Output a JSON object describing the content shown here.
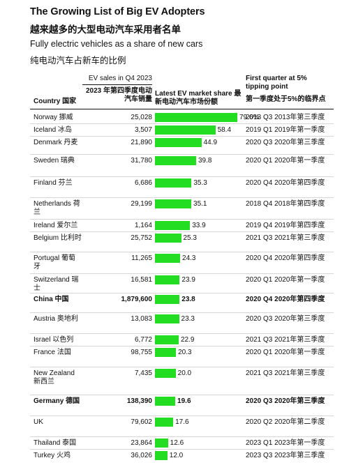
{
  "header": {
    "title": "The Growing List of Big EV Adopters",
    "title_cn": "越来越多的大型电动汽车采用者名单",
    "subtitle": "Fully electric vehicles as a share of new cars",
    "subtitle_cn": "纯电动汽车占新车的比例"
  },
  "columns": {
    "country": "Country 国家",
    "sales_line1": "EV sales in Q4 2023",
    "sales_line2": "2023 年第四季度电动汽车销量",
    "share": "Latest EV market share 最新电动汽车市场份额",
    "tipping_line1": "First quarter at 5% tipping point",
    "tipping_line2": "第一季度处于5%的临界点"
  },
  "chart_data": {
    "type": "table",
    "rows": [
      {
        "country": "Norway 挪威",
        "sales": "25,028",
        "share": 79.6,
        "share_label": "79.6%",
        "tipping": "2013 Q3 2013年第三季度",
        "bold": false
      },
      {
        "country": "Iceland 冰岛",
        "sales": "3,507",
        "share": 58.4,
        "share_label": "58.4",
        "tipping": "2019 Q1 2019年第一季度",
        "bold": false
      },
      {
        "country": "Denmark 丹麦",
        "sales": "21,890",
        "share": 44.9,
        "share_label": "44.9",
        "tipping": "2020 Q3 2020年第三季度",
        "bold": false
      },
      {
        "country": "Sweden 瑞典",
        "sales": "31,780",
        "share": 39.8,
        "share_label": "39.8",
        "tipping": "2020 Q1 2020年第一季度",
        "bold": false
      },
      {
        "country": "Finland 芬兰",
        "sales": "6,686",
        "share": 35.3,
        "share_label": "35.3",
        "tipping": "2020 Q4 2020年第四季度",
        "bold": false
      },
      {
        "country": "Netherlands 荷兰",
        "sales": "29,199",
        "share": 35.1,
        "share_label": "35.1",
        "tipping": "2018 Q4 2018年第四季度",
        "bold": false
      },
      {
        "country": "Ireland 爱尔兰",
        "sales": "1,164",
        "share": 33.9,
        "share_label": "33.9",
        "tipping": "2019 Q4 2019年第四季度",
        "bold": false
      },
      {
        "country": "Belgium 比利时",
        "sales": "25,752",
        "share": 25.3,
        "share_label": "25.3",
        "tipping": "2021 Q3 2021年第三季度",
        "bold": false
      },
      {
        "country": "Portugal 葡萄牙",
        "sales": "11,265",
        "share": 24.3,
        "share_label": "24.3",
        "tipping": "2020 Q4 2020年第四季度",
        "bold": false
      },
      {
        "country": "Switzerland 瑞士",
        "sales": "16,581",
        "share": 23.9,
        "share_label": "23.9",
        "tipping": "2020 Q1 2020年第一季度",
        "bold": false
      },
      {
        "country": "China 中国",
        "sales": "1,879,600",
        "share": 23.8,
        "share_label": "23.8",
        "tipping": "2020 Q4 2020年第四季度",
        "bold": true
      },
      {
        "country": "Austria 奥地利",
        "sales": "13,083",
        "share": 23.3,
        "share_label": "23.3",
        "tipping": "2020 Q3 2020年第三季度",
        "bold": false
      },
      {
        "country": "Israel 以色列",
        "sales": "6,772",
        "share": 22.9,
        "share_label": "22.9",
        "tipping": "2021 Q3 2021年第三季度",
        "bold": false
      },
      {
        "country": "France 法国",
        "sales": "98,755",
        "share": 20.3,
        "share_label": "20.3",
        "tipping": "2020 Q1 2020年第一季度",
        "bold": false
      },
      {
        "country": "New Zealand 新西兰",
        "sales": "7,435",
        "share": 20.0,
        "share_label": "20.0",
        "tipping": "2021 Q3 2021年第三季度",
        "bold": false
      },
      {
        "country": "Germany 德国",
        "sales": "138,390",
        "share": 19.6,
        "share_label": "19.6",
        "tipping": "2020 Q3 2020年第三季度",
        "bold": true
      },
      {
        "country": "UK",
        "sales": "79,602",
        "share": 17.6,
        "share_label": "17.6",
        "tipping": "2020 Q2 2020年第二季度",
        "bold": false
      },
      {
        "country": "Thailand 泰国",
        "sales": "23,864",
        "share": 12.6,
        "share_label": "12.6",
        "tipping": "2023 Q1 2023年第一季度",
        "bold": false
      },
      {
        "country": "Turkey 火鸡",
        "sales": "36,026",
        "share": 12.0,
        "share_label": "12.0",
        "tipping": "2023 Q3 2023年第三季度",
        "bold": false
      }
    ],
    "share_max": 79.6,
    "colors": {
      "bar": "#22dd22"
    }
  }
}
